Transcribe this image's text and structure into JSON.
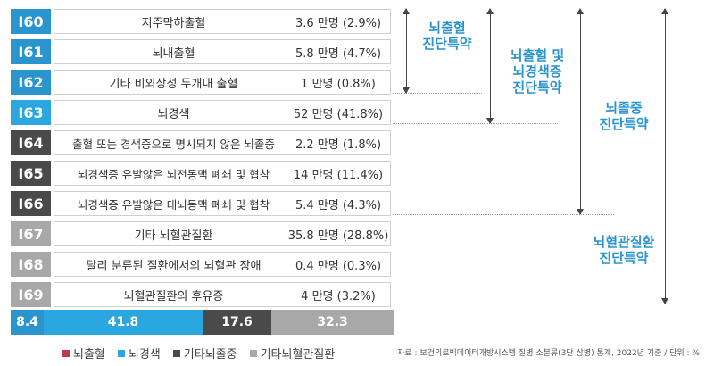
{
  "rows": [
    {
      "code": "I60",
      "name": "지주막하출혈",
      "patients": "3.6 만명 (2.9%)",
      "color": "#2a94cf"
    },
    {
      "code": "I61",
      "name": "뇌내출혈",
      "patients": "5.8 만명 (4.7%)",
      "color": "#2a94cf"
    },
    {
      "code": "I62",
      "name": "기타 비외상성 두개내 출혈",
      "patients": "1 만명 (0.8%)",
      "color": "#2a94cf"
    },
    {
      "code": "I63",
      "name": "뇌경색",
      "patients": "52 만명 (41.8%)",
      "color": "#2aa7df"
    },
    {
      "code": "I64",
      "name": "출혈 또는 경색증으로 명시되지 않은 뇌졸중",
      "patients": "2.2 만명 (1.8%)",
      "color": "#4a4a4a"
    },
    {
      "code": "I65",
      "name": "뇌경색증 유발않은 뇌전동맥 폐쇄 및 협착",
      "patients": "14 만명 (11.4%)",
      "color": "#4a4a4a"
    },
    {
      "code": "I66",
      "name": "뇌경색증 유발않은 대뇌동맥 폐쇄 및 협착",
      "patients": "5.4 만명 (4.3%)",
      "color": "#4a4a4a"
    },
    {
      "code": "I67",
      "name": "기타 뇌혈관질환",
      "patients": "35.8 만명 (28.8%)",
      "color": "#a8a8a8"
    },
    {
      "code": "I68",
      "name": "달리 분류된 질환에서의 뇌혈관 장애",
      "patients": "0.4 만명 (0.3%)",
      "color": "#a8a8a8"
    },
    {
      "code": "I69",
      "name": "뇌혈관질환의 후유증",
      "patients": "4 만명 (3.2%)",
      "color": "#a8a8a8"
    }
  ],
  "groups": {
    "hemorrhage": "뇌출혈\n진단특약",
    "hemorrhage_infarction": "뇌출혈 및\n뇌경색증\n진단특약",
    "stroke": "뇌졸중\n진단특약",
    "cerebrovascular": "뇌혈관질환\n진단특약"
  },
  "chart_data": {
    "type": "bar",
    "orientation": "horizontal-stacked",
    "series": [
      {
        "name": "뇌출혈",
        "value": 8.4,
        "color": "#c0394f"
      },
      {
        "name": "뇌경색",
        "value": 41.8,
        "color": "#2aa7df"
      },
      {
        "name": "기타뇌졸중",
        "value": 17.6,
        "color": "#4a4a4a"
      },
      {
        "name": "기타뇌혈관질환",
        "value": 32.3,
        "color": "#a8a8a8"
      }
    ]
  },
  "labels": {
    "seg_hemorrhage": "8.4",
    "seg_infarction": "41.8",
    "seg_other_stroke": "17.6",
    "seg_other_cv": "32.3"
  },
  "legend": [
    {
      "label": "뇌출혈",
      "color": "#c0394f"
    },
    {
      "label": "뇌경색",
      "color": "#2aa7df"
    },
    {
      "label": "기타뇌졸중",
      "color": "#4a4a4a"
    },
    {
      "label": "기타뇌혈관질환",
      "color": "#a8a8a8"
    }
  ],
  "source": "자료 : 보건의료빅데이터개방시스템 질병 소분류(3단 상병) 통계, 2022년 기준 / 단위 : %"
}
